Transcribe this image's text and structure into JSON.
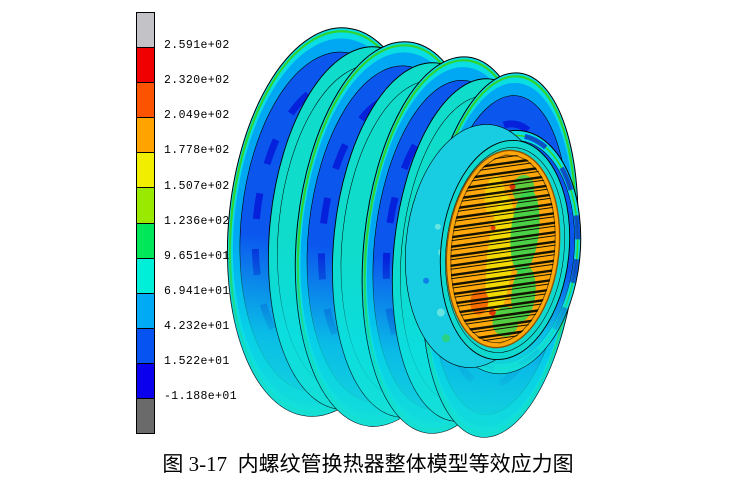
{
  "figure": {
    "caption": "图 3-17  内螺纹管换热器整体模型等效应力图"
  },
  "legend": {
    "labels": [
      "2.591e+02",
      "2.320e+02",
      "2.049e+02",
      "1.778e+02",
      "1.507e+02",
      "1.236e+02",
      "9.651e+01",
      "6.941e+01",
      "4.232e+01",
      "1.522e+01",
      "-1.188e+01"
    ],
    "colors": [
      "#c3c3c7",
      "#f00000",
      "#fb5300",
      "#ffa300",
      "#f2ee00",
      "#99ea00",
      "#00e75a",
      "#00efd8",
      "#00aaf5",
      "#0653f2",
      "#0a00ee",
      "#6a6a6a"
    ]
  },
  "model_palette": {
    "body_cyan": "#0adde4",
    "body_sky": "#00a8f4",
    "body_blue": "#0b57ee",
    "body_dark_blue": "#0617d8",
    "rim_green": "#2fd42f",
    "groove_turquoise": "#0fdccb",
    "end_ring_cyan": "#0fd8ce",
    "fin_face_orange": "#ffa70b",
    "fin_yellow": "#f0e600",
    "fin_green": "#35d54e",
    "fin_hot_orange": "#f66000",
    "fin_red": "#e02500"
  }
}
